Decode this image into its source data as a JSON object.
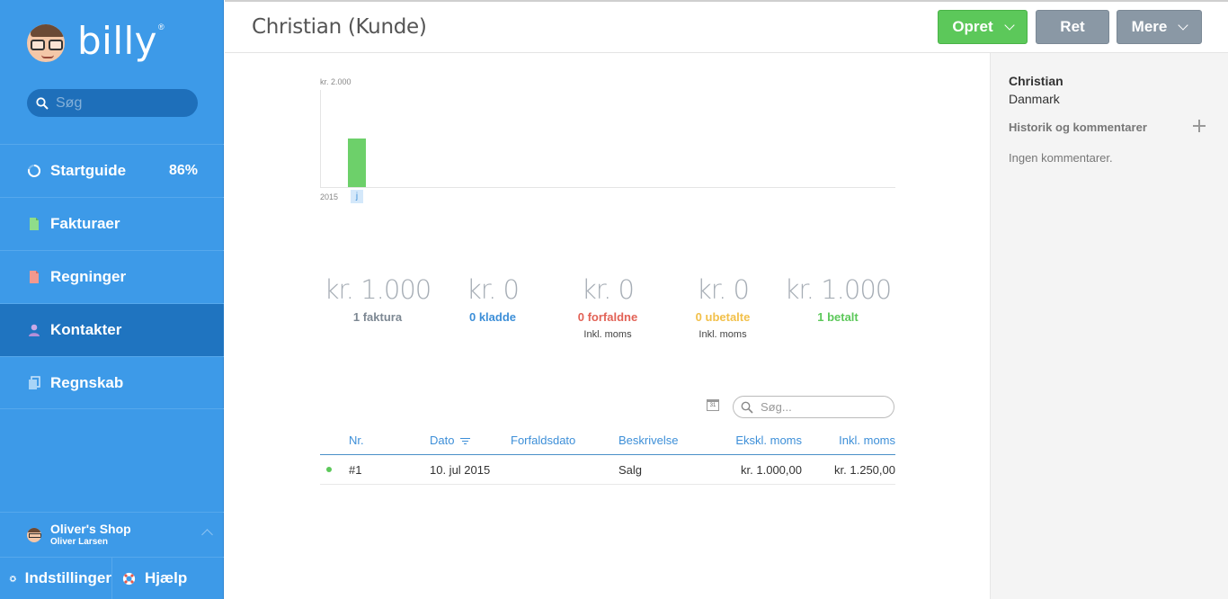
{
  "app": {
    "logo_text": "billy",
    "logo_reg": "®"
  },
  "sidebar": {
    "search_placeholder": "Søg",
    "items": [
      {
        "label": "Startguide",
        "icon": "progress-circle-icon",
        "percent": "86%"
      },
      {
        "label": "Fakturaer",
        "icon": "invoice-icon"
      },
      {
        "label": "Regninger",
        "icon": "bill-icon"
      },
      {
        "label": "Kontakter",
        "icon": "person-icon",
        "active": true
      },
      {
        "label": "Regnskab",
        "icon": "ledger-icon"
      }
    ],
    "shop": {
      "name": "Oliver's Shop",
      "user": "Oliver Larsen"
    },
    "settings_label": "Indstillinger",
    "help_label": "Hjælp"
  },
  "header": {
    "title": "Christian (Kunde)",
    "create_label": "Opret",
    "edit_label": "Ret",
    "more_label": "Mere"
  },
  "chart_data": {
    "type": "bar",
    "y_max_label": "kr. 2.000",
    "ylim": [
      0,
      2000
    ],
    "x_year_label": "2015",
    "categories": [
      "j"
    ],
    "values": [
      1000
    ],
    "colors": [
      "#6dd06a"
    ]
  },
  "stats": [
    {
      "amount": "kr. 1.000",
      "label": "1 faktura",
      "color": "#7d8893",
      "sub": ""
    },
    {
      "amount": "kr. 0",
      "label": "0 kladde",
      "color": "#3d8fd8",
      "sub": ""
    },
    {
      "amount": "kr. 0",
      "label": "0 forfaldne",
      "color": "#e26256",
      "sub": "Inkl. moms"
    },
    {
      "amount": "kr. 0",
      "label": "0 ubetalte",
      "color": "#f2c04a",
      "sub": "Inkl. moms"
    },
    {
      "amount": "kr. 1.000",
      "label": "1 betalt",
      "color": "#5cc85a",
      "sub": ""
    }
  ],
  "table": {
    "search_placeholder": "Søg...",
    "calendar_label": "31",
    "columns": {
      "nr": "Nr.",
      "date": "Dato",
      "due": "Forfaldsdato",
      "desc": "Beskrivelse",
      "excl": "Ekskl. moms",
      "incl": "Inkl. moms"
    },
    "rows": [
      {
        "nr": "#1",
        "date": "10. jul 2015",
        "due": "",
        "desc": "Salg",
        "excl": "kr. 1.000,00",
        "incl": "kr. 1.250,00"
      }
    ]
  },
  "right_panel": {
    "name": "Christian",
    "country": "Danmark",
    "history_label": "Historik og kommentarer",
    "no_comments": "Ingen kommentarer."
  }
}
